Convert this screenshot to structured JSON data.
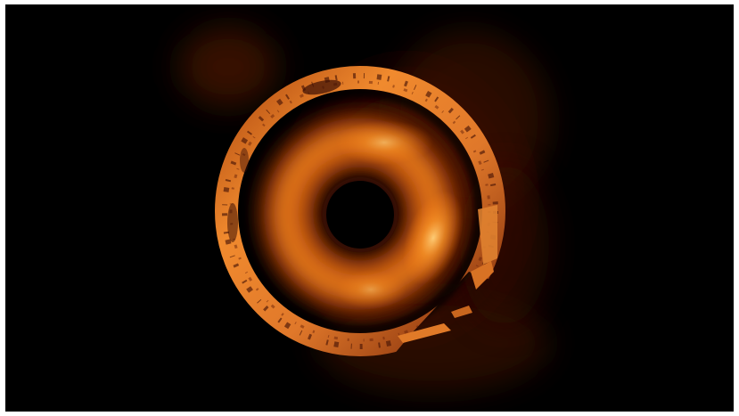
{
  "image": {
    "subject": "black-hole-accretion-ring",
    "background_color": "#000000",
    "border_color": "#ffffff",
    "palette": {
      "core": "#000000",
      "inner_glow": "#ff9a2a",
      "mid_orange": "#e06a10",
      "deep_orange": "#8a2a05",
      "ring_bright": "#f08a2e",
      "ring_dark": "#5a1c06",
      "outer_haze": "#3a0c02"
    }
  }
}
